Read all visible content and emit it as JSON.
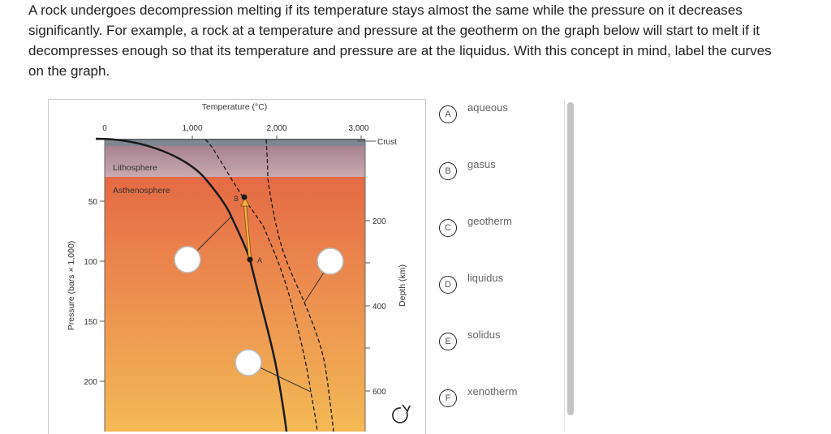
{
  "question": "A rock undergoes decompression melting if its temperature stays almost the same while the pressure on it decreases significantly. For example, a rock at a temperature and pressure at the geotherm on the graph below will start to melt if it decompresses enough so that its temperature and pressure are at the liquidus. With this concept in mind, label the curves on the graph.",
  "figure": {
    "x_axis_title": "Temperature (°C)",
    "x_ticks": [
      "0",
      "1,000",
      "2,000",
      "3,000"
    ],
    "y_axis_title": "Pressure (bars × 1,000)",
    "y_ticks": [
      "50",
      "100",
      "150",
      "200"
    ],
    "y2_axis_title": "Depth (km)",
    "y2_ticks": [
      "200",
      "400",
      "600"
    ],
    "layers": {
      "crust": "Crust",
      "lithosphere": "Lithosphere",
      "asthenosphere": "Asthenosphere"
    },
    "points": {
      "a": "A",
      "b": "B"
    },
    "colors": {
      "lithosphere": "#b08a96",
      "asthenosphere_top": "#e56a44",
      "asthenosphere_bottom": "#f4b955",
      "arrow": "#f5b041"
    }
  },
  "options": [
    {
      "letter": "A",
      "label": "aqueous"
    },
    {
      "letter": "B",
      "label": "gasus"
    },
    {
      "letter": "C",
      "label": "geotherm"
    },
    {
      "letter": "D",
      "label": "liquidus"
    },
    {
      "letter": "E",
      "label": "solidus"
    },
    {
      "letter": "F",
      "label": "xenotherm"
    }
  ],
  "icons": {
    "reset": "refresh-icon"
  }
}
